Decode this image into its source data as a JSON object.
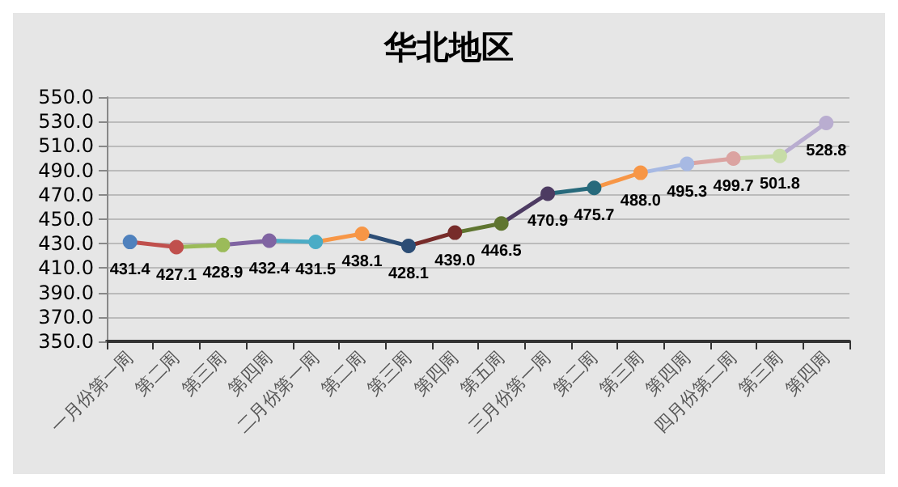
{
  "chart_data": {
    "type": "line",
    "title": "华北地区",
    "categories": [
      "一月份第一周",
      "第二周",
      "第三周",
      "第四周",
      "二月份第一周",
      "第二周",
      "第三周",
      "第四周",
      "第五周",
      "三月份第一周",
      "第二周",
      "第三周",
      "第四周",
      "四月份第二周",
      "第三周",
      "第四周"
    ],
    "series": [
      {
        "values": [
          431.4,
          427.1,
          428.9,
          432.4,
          431.5,
          438.1,
          428.1,
          439.0,
          446.5,
          470.9,
          475.7,
          488.0,
          495.3,
          499.7,
          501.8,
          528.8
        ],
        "colors": [
          "#4f81bd",
          "#c0504d",
          "#9bbb59",
          "#8064a2",
          "#4bacc6",
          "#f79646",
          "#2c4d75",
          "#772c2a",
          "#5f7530",
          "#4d3b62",
          "#276a7c",
          "#f79646",
          "#a7b9e3",
          "#dba3a1",
          "#c7dca7",
          "#b9add0"
        ],
        "value_labels": [
          "431.4",
          "427.1",
          "428.9",
          "432.4",
          "431.5",
          "438.1",
          "428.1",
          "439.0",
          "446.5",
          "470.9",
          "475.7",
          "488.0",
          "495.3",
          "499.7",
          "501.8",
          "528.8"
        ]
      }
    ],
    "ylim": [
      350,
      550
    ],
    "yticks": [
      {
        "value": 350,
        "label": "350.0"
      },
      {
        "value": 370,
        "label": "370.0"
      },
      {
        "value": 390,
        "label": "390.0"
      },
      {
        "value": 410,
        "label": "410.0"
      },
      {
        "value": 430,
        "label": "430.0"
      },
      {
        "value": 450,
        "label": "450.0"
      },
      {
        "value": 470,
        "label": "470.0"
      },
      {
        "value": 490,
        "label": "490.0"
      },
      {
        "value": 510,
        "label": "510.0"
      },
      {
        "value": 530,
        "label": "530.0"
      },
      {
        "value": 550,
        "label": "550.0"
      }
    ],
    "grid": "y",
    "marker": "circle",
    "line_style": "solid"
  }
}
